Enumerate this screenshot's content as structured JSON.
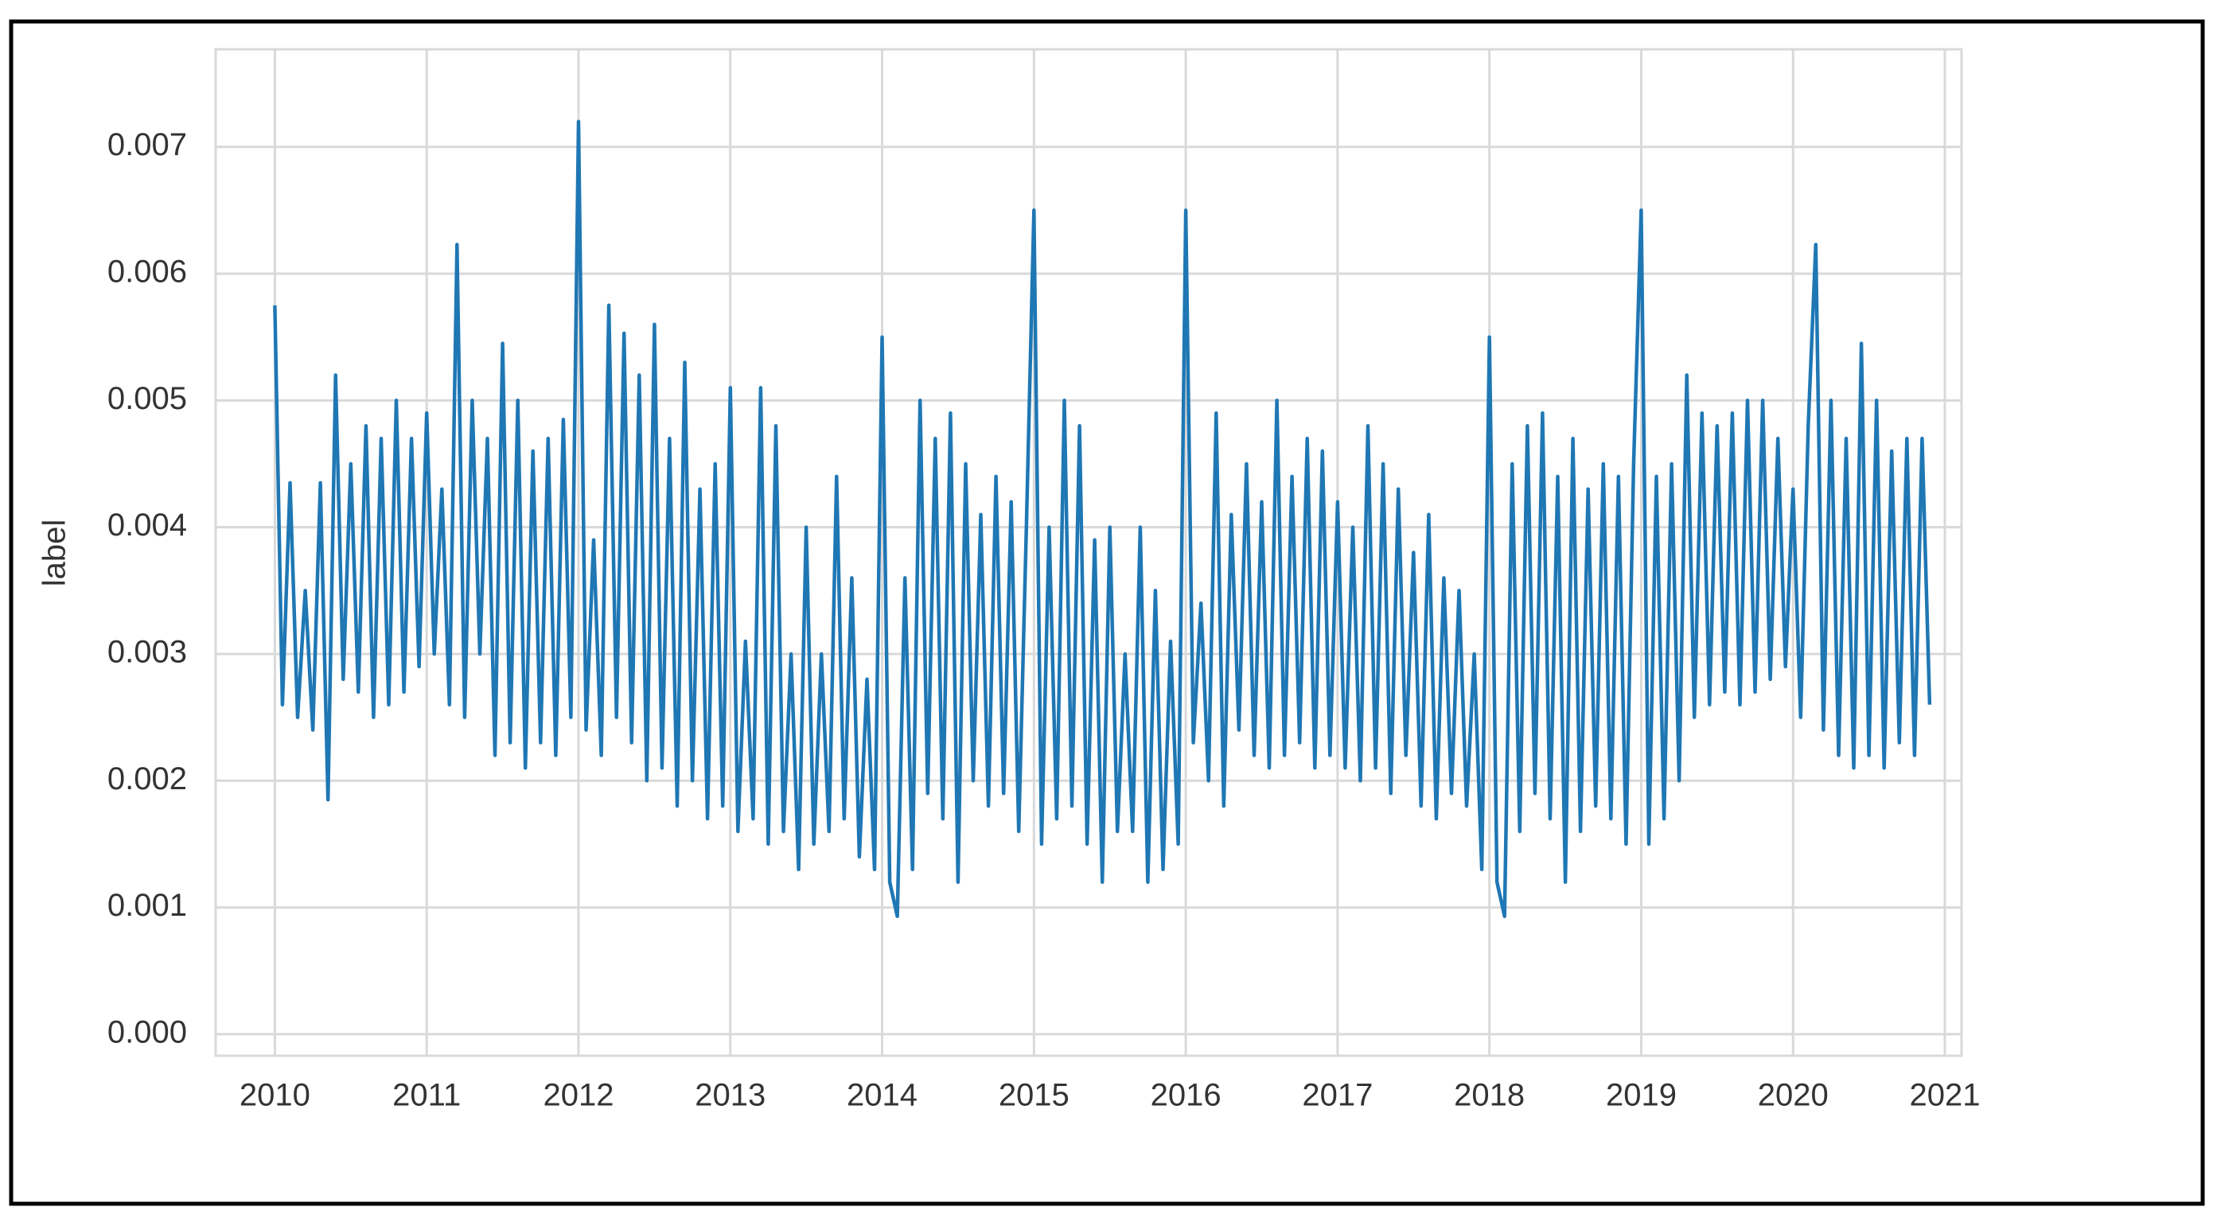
{
  "chart_data": {
    "type": "line",
    "ylabel": "label",
    "xlim": [
      2009.61,
      2021.11
    ],
    "ylim": [
      -0.00017,
      0.00777
    ],
    "xticks": [
      2010,
      2011,
      2012,
      2013,
      2014,
      2015,
      2016,
      2017,
      2018,
      2019,
      2020,
      2021
    ],
    "yticks": [
      {
        "value": 0,
        "label": "0.000"
      },
      0.001,
      0.002,
      0.003,
      0.004,
      0.005,
      0.006,
      0.007
    ],
    "grid": true,
    "series": [
      {
        "color": "#1f77b4",
        "x": [
          2010,
          2010.05,
          2010.1,
          2010.15,
          2010.2,
          2010.25,
          2010.3,
          2010.35,
          2010.4,
          2010.45,
          2010.5,
          2010.55,
          2010.6,
          2010.65,
          2010.7,
          2010.75,
          2010.8,
          2010.85,
          2010.9,
          2010.95,
          2011,
          2011.05,
          2011.1,
          2011.15,
          2011.2,
          2011.25,
          2011.3,
          2011.35,
          2011.4,
          2011.45,
          2011.5,
          2011.55,
          2011.6,
          2011.65,
          2011.7,
          2011.75,
          2011.8,
          2011.85,
          2011.9,
          2011.95,
          2012,
          2012.05,
          2012.1,
          2012.15,
          2012.2,
          2012.25,
          2012.3,
          2012.35,
          2012.4,
          2012.45,
          2012.5,
          2012.55,
          2012.6,
          2012.65,
          2012.7,
          2012.75,
          2012.8,
          2012.85,
          2012.9,
          2012.95,
          2013,
          2013.05,
          2013.1,
          2013.15,
          2013.2,
          2013.25,
          2013.3,
          2013.35,
          2013.4,
          2013.45,
          2013.5,
          2013.55,
          2013.6,
          2013.65,
          2013.7,
          2013.75,
          2013.8,
          2013.85,
          2013.9,
          2013.95,
          2014,
          2014.05,
          2014.1,
          2014.15,
          2014.2,
          2014.25,
          2014.3,
          2014.35,
          2014.4,
          2014.45,
          2014.5,
          2014.55,
          2014.6,
          2014.65,
          2014.7,
          2014.75,
          2014.8,
          2014.85,
          2014.9,
          2014.95,
          2015,
          2015.05,
          2015.1,
          2015.15,
          2015.2,
          2015.25,
          2015.3,
          2015.35,
          2015.4,
          2015.45,
          2015.5,
          2015.55,
          2015.6,
          2015.65,
          2015.7,
          2015.75,
          2015.8,
          2015.85,
          2015.9,
          2015.95,
          2016,
          2016.05,
          2016.1,
          2016.15,
          2016.2,
          2016.25,
          2016.3,
          2016.35,
          2016.4,
          2016.45,
          2016.5,
          2016.55,
          2016.6,
          2016.65,
          2016.7,
          2016.75,
          2016.8,
          2016.85,
          2016.9,
          2016.95,
          2017,
          2017.05,
          2017.1,
          2017.15,
          2017.2,
          2017.25,
          2017.3,
          2017.35,
          2017.4,
          2017.45,
          2017.5,
          2017.55,
          2017.6,
          2017.65,
          2017.7,
          2017.75,
          2017.8,
          2017.85,
          2017.9,
          2017.95,
          2018,
          2018.05,
          2018.1,
          2018.15,
          2018.2,
          2018.25,
          2018.3,
          2018.35,
          2018.4,
          2018.45,
          2018.5,
          2018.55,
          2018.6,
          2018.65,
          2018.7,
          2018.75,
          2018.8,
          2018.85,
          2018.9,
          2018.95,
          2019,
          2019.05,
          2019.1,
          2019.15,
          2019.2,
          2019.25,
          2019.3,
          2019.35,
          2019.4,
          2019.45,
          2019.5,
          2019.55,
          2019.6,
          2019.65,
          2019.7,
          2019.75,
          2019.8,
          2019.85,
          2019.9,
          2019.95,
          2020,
          2020.05,
          2020.1,
          2020.15,
          2020.2,
          2020.25,
          2020.3,
          2020.35,
          2020.4,
          2020.45,
          2020.5,
          2020.55,
          2020.6,
          2020.65,
          2020.7,
          2020.75,
          2020.8,
          2020.85,
          2020.9
        ],
        "values": [
          0.00575,
          0.0026,
          0.00435,
          0.0025,
          0.0035,
          0.0024,
          0.00435,
          0.00185,
          0.0052,
          0.0028,
          0.0045,
          0.0027,
          0.0048,
          0.0025,
          0.0047,
          0.0026,
          0.005,
          0.0027,
          0.0047,
          0.0029,
          0.0049,
          0.003,
          0.0043,
          0.0026,
          0.00623,
          0.0025,
          0.005,
          0.003,
          0.0047,
          0.0022,
          0.00545,
          0.0023,
          0.005,
          0.0021,
          0.0046,
          0.0023,
          0.0047,
          0.0022,
          0.00485,
          0.0025,
          0.0072,
          0.0024,
          0.0039,
          0.0022,
          0.00575,
          0.0025,
          0.00553,
          0.0023,
          0.0052,
          0.002,
          0.0056,
          0.0021,
          0.0047,
          0.0018,
          0.0053,
          0.002,
          0.0043,
          0.0017,
          0.0045,
          0.0018,
          0.0051,
          0.0016,
          0.0031,
          0.0017,
          0.0051,
          0.0015,
          0.0048,
          0.0016,
          0.003,
          0.0013,
          0.004,
          0.0015,
          0.003,
          0.0016,
          0.0044,
          0.0017,
          0.0036,
          0.0014,
          0.0028,
          0.0013,
          0.0055,
          0.0012,
          0.00093,
          0.0036,
          0.0013,
          0.005,
          0.0019,
          0.0047,
          0.0017,
          0.0049,
          0.0012,
          0.0045,
          0.002,
          0.0041,
          0.0018,
          0.0044,
          0.0019,
          0.0042,
          0.0016,
          0.004,
          0.0065,
          0.0015,
          0.004,
          0.0017,
          0.005,
          0.0018,
          0.0048,
          0.0015,
          0.0039,
          0.0012,
          0.004,
          0.0016,
          0.003,
          0.0016,
          0.004,
          0.0012,
          0.0035,
          0.0013,
          0.0031,
          0.0015,
          0.0065,
          0.0023,
          0.0034,
          0.002,
          0.0049,
          0.0018,
          0.0041,
          0.0024,
          0.0045,
          0.0022,
          0.0042,
          0.0021,
          0.005,
          0.0022,
          0.0044,
          0.0023,
          0.0047,
          0.0021,
          0.0046,
          0.0022,
          0.0042,
          0.0021,
          0.004,
          0.002,
          0.0048,
          0.0021,
          0.0045,
          0.0019,
          0.0043,
          0.0022,
          0.0038,
          0.0018,
          0.0041,
          0.0017,
          0.0036,
          0.0019,
          0.0035,
          0.0018,
          0.003,
          0.0013,
          0.0055,
          0.0012,
          0.00093,
          0.0045,
          0.0016,
          0.0048,
          0.0019,
          0.0049,
          0.0017,
          0.0044,
          0.0012,
          0.0047,
          0.0016,
          0.0043,
          0.0018,
          0.0045,
          0.0017,
          0.0044,
          0.0015,
          0.0045,
          0.0065,
          0.0015,
          0.0044,
          0.0017,
          0.0045,
          0.002,
          0.0052,
          0.0025,
          0.0049,
          0.0026,
          0.0048,
          0.0027,
          0.0049,
          0.0026,
          0.005,
          0.0027,
          0.005,
          0.0028,
          0.0047,
          0.0029,
          0.0043,
          0.0025,
          0.0048,
          0.00623,
          0.0024,
          0.005,
          0.0022,
          0.0047,
          0.0021,
          0.00545,
          0.0022,
          0.005,
          0.0021,
          0.0046,
          0.0023,
          0.0047,
          0.0022,
          0.0047,
          0.0026
        ]
      }
    ]
  }
}
